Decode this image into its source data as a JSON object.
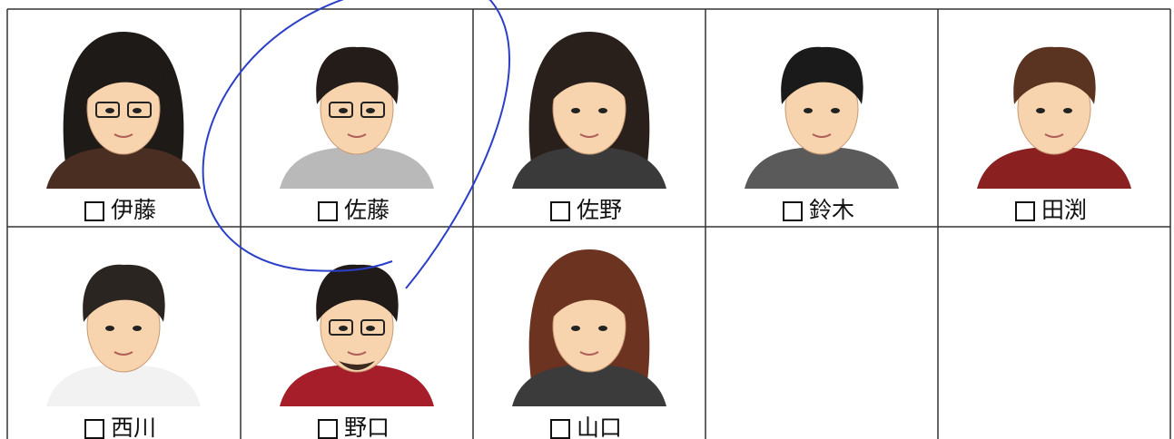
{
  "names": [
    "伊藤",
    "佐藤",
    "佐野",
    "鈴木",
    "田渕",
    "西川",
    "野口",
    "山口"
  ]
}
